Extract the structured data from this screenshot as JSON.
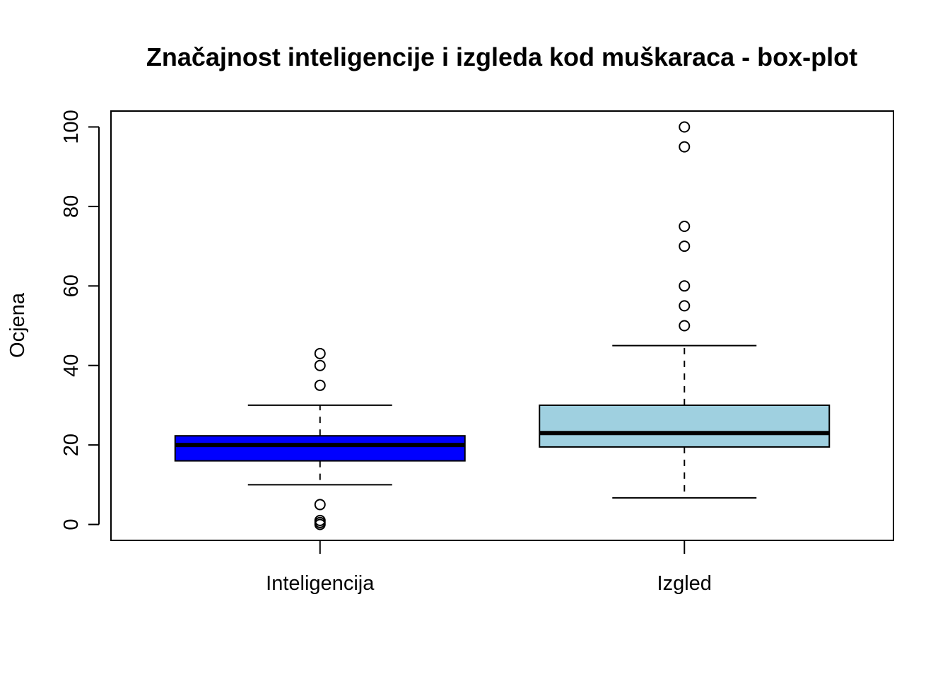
{
  "chart_data": {
    "type": "box",
    "title": "Značajnost inteligencije i izgleda kod muškaraca - box-plot",
    "xlabel": "",
    "ylabel": "Ocjena",
    "ylim": [
      -4,
      104
    ],
    "yticks": [
      "0",
      "20",
      "40",
      "60",
      "80",
      "100"
    ],
    "grid": false,
    "legend": "none",
    "categories": [
      "Inteligencija",
      "Izgled"
    ],
    "boxes": [
      {
        "category": "Inteligencija",
        "color": "#0000ff",
        "whisker_low": 10,
        "q1": 16,
        "median": 20,
        "q3": 22.3,
        "whisker_high": 30,
        "outliers": [
          0,
          0.5,
          1,
          5,
          35,
          40,
          43
        ]
      },
      {
        "category": "Izgled",
        "color": "#9fd0e0",
        "whisker_low": 6.7,
        "q1": 19.5,
        "median": 23,
        "q3": 30,
        "whisker_high": 45,
        "outliers": [
          50,
          55,
          60,
          70,
          75,
          95,
          100
        ]
      }
    ]
  }
}
